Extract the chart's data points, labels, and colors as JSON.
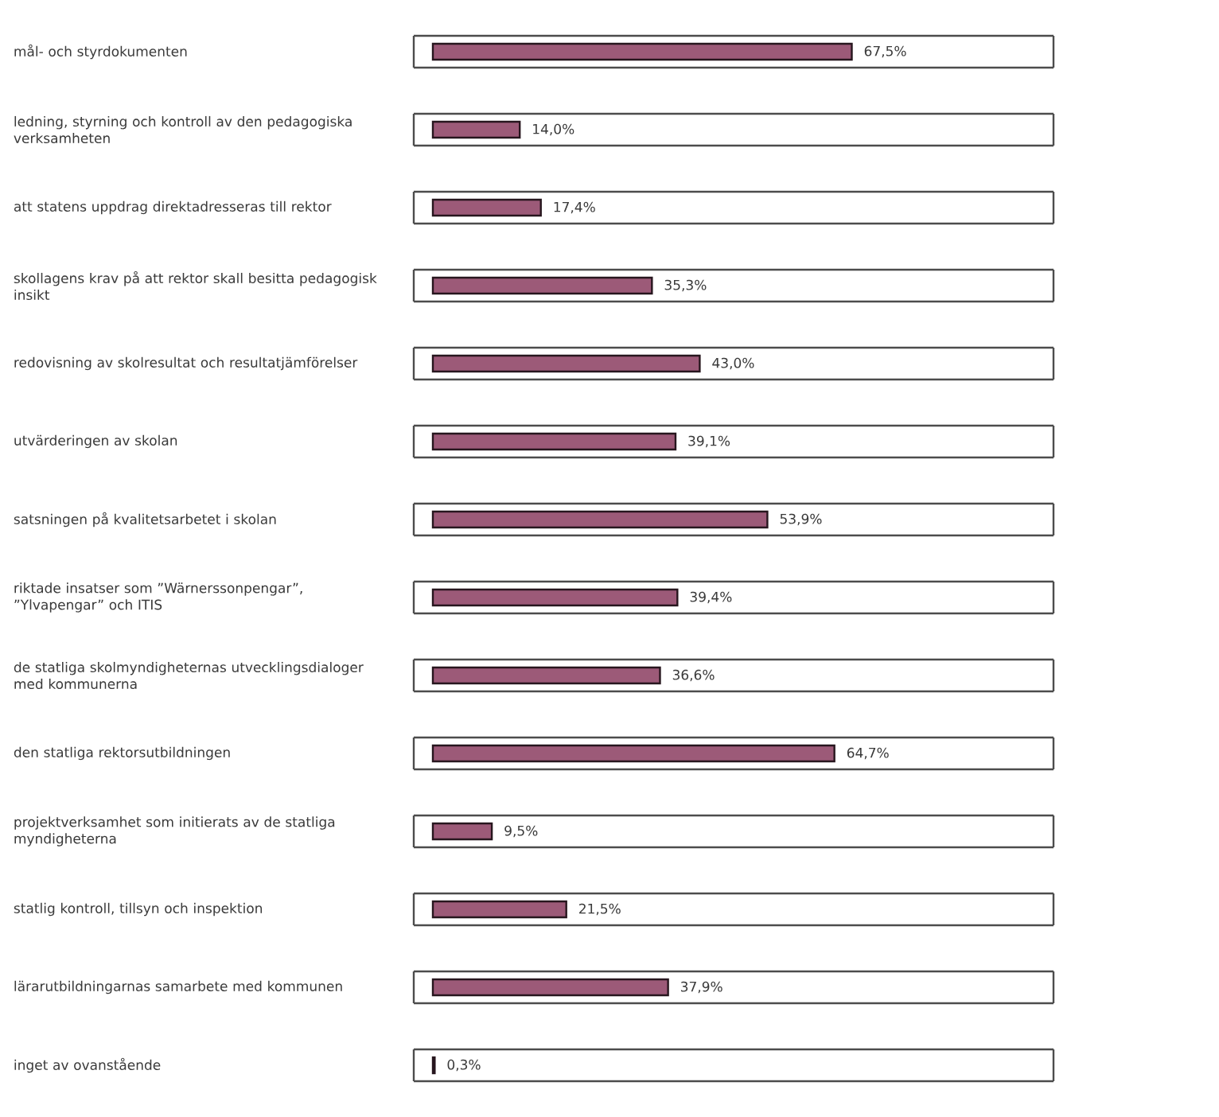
{
  "chart_data": {
    "type": "bar",
    "orientation": "horizontal",
    "tick_labels": "y",
    "categories": [
      "mål- och styrdokumenten",
      "ledning, styrning och kontroll av den pedagogiska verksamheten",
      "att statens uppdrag direktadresseras till rektor",
      "skollagens krav på att rektor skall besitta pedagogisk insikt",
      "redovisning av skolresultat och resultatjämförelser",
      "utvärderingen av skolan",
      "satsningen på kvalitetsarbetet i skolan",
      "riktade insatser som ”Wärnerssonpengar”, ”Ylvapengar” och ITIS",
      "de statliga skolmyndigheternas utvecklingsdialoger med kommunerna",
      "den statliga rektorsutbildningen",
      "projektverksamhet som initierats av de statliga myndigheterna",
      "statlig kontroll, tillsyn och inspektion",
      "lärarutbildningarnas samarbete med kommunen",
      "inget av ovanstående"
    ],
    "values": [
      67.5,
      14.0,
      17.4,
      35.3,
      43.0,
      39.1,
      53.9,
      39.4,
      36.6,
      64.7,
      9.5,
      21.5,
      37.9,
      0.3
    ],
    "value_labels": [
      "67,5%",
      "14,0%",
      "17,4%",
      "35,3%",
      "43,0%",
      "39,1%",
      "53,9%",
      "39,4%",
      "36,6%",
      "64,7%",
      "9,5%",
      "21,5%",
      "37,9%",
      "0,3%"
    ],
    "color": "#9c5a78",
    "xlim": [
      0,
      100
    ]
  }
}
